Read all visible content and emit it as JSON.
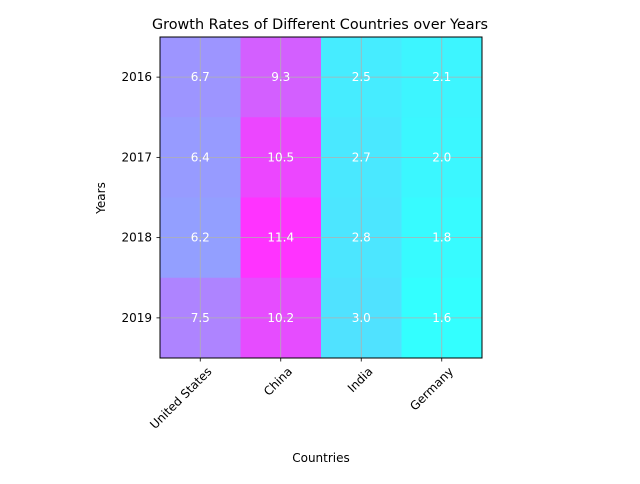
{
  "chart_data": {
    "type": "heatmap",
    "title": "Growth Rates of Different Countries over Years",
    "xlabel": "Countries",
    "ylabel": "Years",
    "x_categories": [
      "United States",
      "China",
      "India",
      "Germany"
    ],
    "y_categories": [
      "2016",
      "2017",
      "2018",
      "2019"
    ],
    "values": [
      [
        6.7,
        9.3,
        2.5,
        2.1
      ],
      [
        6.4,
        10.5,
        2.7,
        2.0
      ],
      [
        6.2,
        11.4,
        2.8,
        1.8
      ],
      [
        7.5,
        10.2,
        3.0,
        1.6
      ]
    ],
    "value_labels": [
      [
        "6.7",
        "9.3",
        "2.5",
        "2.1"
      ],
      [
        "6.4",
        "10.5",
        "2.7",
        "2.0"
      ],
      [
        "6.2",
        "11.4",
        "2.8",
        "1.8"
      ],
      [
        "7.5",
        "10.2",
        "3.0",
        "1.6"
      ]
    ],
    "value_range": [
      1.6,
      11.4
    ],
    "colormap": "cool",
    "cmap_start": "#00ffff",
    "cmap_end": "#ff00ff",
    "cell_alpha": 0.8,
    "annotation_color": "#ffffff",
    "grid": true,
    "grid_color": "#b0b0b0",
    "x_tick_rotation_deg": 45
  }
}
